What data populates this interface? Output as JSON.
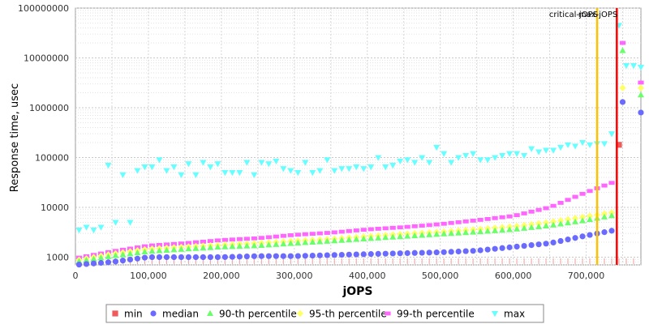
{
  "chart_data": {
    "type": "scatter",
    "xlabel": "jOPS",
    "ylabel": "Response time, usec",
    "x_scale": "linear",
    "y_scale": "log",
    "xlim": [
      0,
      775000
    ],
    "ylim": [
      700,
      100000000
    ],
    "x_ticks": [
      0,
      100000,
      200000,
      300000,
      400000,
      500000,
      600000,
      700000
    ],
    "x_tick_labels": [
      "0",
      "100,000",
      "200,000",
      "300,000",
      "400,000",
      "500,000",
      "600,000",
      "700,000"
    ],
    "y_ticks": [
      1000,
      10000,
      100000,
      1000000,
      10000000,
      100000000
    ],
    "y_tick_labels": [
      "1000",
      "10000",
      "100000",
      "1000000",
      "10000000",
      "100000000"
    ],
    "grid": true,
    "legend_position": "bottom",
    "markers": [
      {
        "label": "critical-jOPS",
        "x": 715000,
        "color": "#ffc000"
      },
      {
        "label": "max-jOPS",
        "x": 742000,
        "color": "#ff0000"
      }
    ],
    "min_marker_label": "min",
    "series": [
      {
        "name": "min",
        "color": "#f05a5a",
        "shape": "square",
        "x": [
          745000
        ],
        "y": [
          180000
        ]
      },
      {
        "name": "median",
        "color": "#6a6aff",
        "shape": "circle",
        "x": [
          0,
          50000,
          100000,
          150000,
          200000,
          250000,
          300000,
          350000,
          400000,
          450000,
          500000,
          550000,
          600000,
          650000,
          700000,
          740000,
          750000,
          775000
        ],
        "y": [
          700,
          800,
          1000,
          1000,
          1000,
          1050,
          1050,
          1100,
          1150,
          1200,
          1250,
          1350,
          1600,
          1900,
          2700,
          3500,
          1300000,
          800000
        ]
      },
      {
        "name": "90-th percentile",
        "color": "#6aff6a",
        "shape": "triangle",
        "x": [
          0,
          50000,
          100000,
          150000,
          200000,
          250000,
          300000,
          350000,
          400000,
          450000,
          500000,
          550000,
          600000,
          650000,
          700000,
          740000,
          750000,
          775000
        ],
        "y": [
          800,
          1050,
          1300,
          1450,
          1600,
          1700,
          1900,
          2100,
          2350,
          2600,
          2900,
          3200,
          3600,
          4300,
          5500,
          7000,
          14000000,
          1800000
        ]
      },
      {
        "name": "95-th percentile",
        "color": "#ffff66",
        "shape": "diamond",
        "x": [
          0,
          50000,
          100000,
          150000,
          200000,
          250000,
          300000,
          350000,
          400000,
          450000,
          500000,
          550000,
          600000,
          650000,
          700000,
          740000,
          750000,
          775000
        ],
        "y": [
          850,
          1150,
          1450,
          1600,
          1750,
          1900,
          2100,
          2300,
          2600,
          2900,
          3200,
          3600,
          4100,
          5000,
          6500,
          8000,
          2500000,
          2500000
        ]
      },
      {
        "name": "99-th percentile",
        "color": "#ff66ff",
        "shape": "rect",
        "x": [
          0,
          50000,
          100000,
          150000,
          200000,
          250000,
          300000,
          350000,
          400000,
          450000,
          500000,
          550000,
          600000,
          650000,
          700000,
          740000,
          750000,
          775000
        ],
        "y": [
          950,
          1300,
          1700,
          1900,
          2200,
          2400,
          2800,
          3100,
          3600,
          4000,
          4600,
          5500,
          6700,
          10000,
          20000,
          33000,
          20000000,
          3200000
        ]
      },
      {
        "name": "max",
        "color": "#66ffff",
        "shape": "triangle-down",
        "x": [
          5000,
          15000,
          25000,
          35000,
          45000,
          55000,
          65000,
          75000,
          85000,
          95000,
          105000,
          115000,
          125000,
          135000,
          145000,
          155000,
          165000,
          175000,
          185000,
          195000,
          205000,
          215000,
          225000,
          235000,
          245000,
          255000,
          265000,
          275000,
          285000,
          295000,
          305000,
          315000,
          325000,
          335000,
          345000,
          355000,
          365000,
          375000,
          385000,
          395000,
          405000,
          415000,
          425000,
          435000,
          445000,
          455000,
          465000,
          475000,
          485000,
          495000,
          505000,
          515000,
          525000,
          535000,
          545000,
          555000,
          565000,
          575000,
          585000,
          595000,
          605000,
          615000,
          625000,
          635000,
          645000,
          655000,
          665000,
          675000,
          685000,
          695000,
          705000,
          715000,
          725000,
          735000,
          745000,
          755000,
          765000,
          775000
        ],
        "y": [
          3500,
          4000,
          3500,
          4000,
          70000,
          5000,
          45000,
          5000,
          55000,
          65000,
          65000,
          90000,
          55000,
          65000,
          45000,
          75000,
          45000,
          80000,
          65000,
          75000,
          50000,
          50000,
          50000,
          80000,
          45000,
          80000,
          75000,
          85000,
          60000,
          55000,
          50000,
          80000,
          50000,
          55000,
          90000,
          55000,
          60000,
          60000,
          65000,
          60000,
          65000,
          100000,
          65000,
          70000,
          85000,
          90000,
          80000,
          100000,
          80000,
          160000,
          120000,
          80000,
          100000,
          110000,
          120000,
          90000,
          90000,
          100000,
          110000,
          120000,
          120000,
          110000,
          150000,
          130000,
          140000,
          140000,
          160000,
          180000,
          170000,
          200000,
          180000,
          190000,
          190000,
          300000,
          45000000,
          7000000,
          7000000,
          6500000
        ]
      }
    ]
  }
}
